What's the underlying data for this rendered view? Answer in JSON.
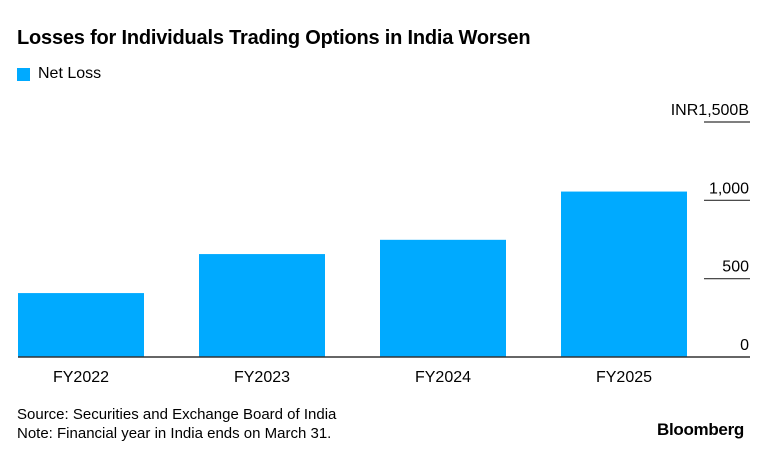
{
  "chart_data": {
    "type": "bar",
    "title": "Losses for Individuals Trading Options in India Worsen",
    "categories": [
      "FY2022",
      "FY2023",
      "FY2024",
      "FY2025"
    ],
    "series": [
      {
        "name": "Net Loss",
        "values": [
          408,
          657,
          748,
          1056
        ],
        "color": "#00AAFF"
      }
    ],
    "ylim": [
      0,
      1500
    ],
    "yticks": [
      0,
      500,
      1000,
      1500
    ],
    "ytick_labels": [
      "0",
      "500",
      "1,000",
      "INR1,500B"
    ],
    "y_axis_position": "right",
    "grid": false,
    "legend": "top-left"
  },
  "footer": {
    "source": "Source: Securities and Exchange Board of India",
    "note": "Note: Financial year in India ends on March 31."
  },
  "brand": "Bloomberg"
}
